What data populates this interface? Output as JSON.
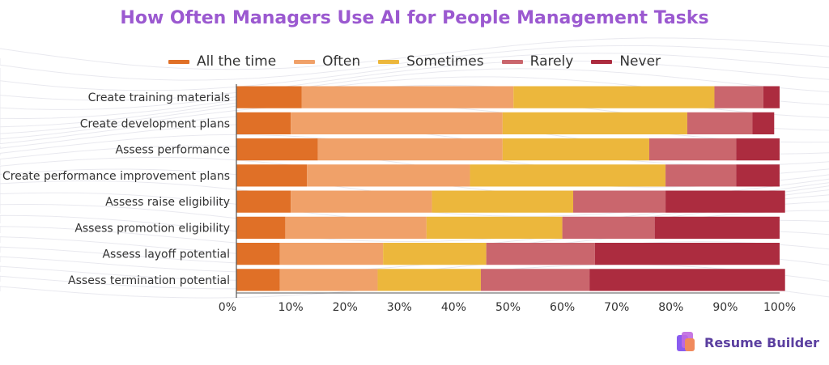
{
  "chart_data": {
    "type": "bar",
    "orientation": "horizontal",
    "stacked": true,
    "title": "How Often Managers Use AI for People Management Tasks",
    "categories": [
      "Create training materials",
      "Create development plans",
      "Assess performance",
      "Create performance improvement plans",
      "Assess raise eligibility",
      "Assess promotion eligibility",
      "Assess layoff potential",
      "Assess termination potential"
    ],
    "series": [
      {
        "name": "All the time",
        "color": "#e07027",
        "values": [
          12,
          10,
          15,
          13,
          10,
          9,
          8,
          8
        ]
      },
      {
        "name": "Often",
        "color": "#f0a169",
        "values": [
          39,
          39,
          34,
          30,
          26,
          26,
          19,
          18
        ]
      },
      {
        "name": "Sometimes",
        "color": "#ecb73c",
        "values": [
          37,
          34,
          27,
          36,
          26,
          25,
          19,
          19
        ]
      },
      {
        "name": "Rarely",
        "color": "#ca666d",
        "values": [
          9,
          12,
          16,
          13,
          17,
          17,
          20,
          20
        ]
      },
      {
        "name": "Never",
        "color": "#ac2c3f",
        "values": [
          3,
          4,
          8,
          8,
          22,
          23,
          34,
          36
        ]
      }
    ],
    "xlim": [
      0,
      100
    ],
    "xticks": [
      "0%",
      "10%",
      "20%",
      "30%",
      "40%",
      "50%",
      "60%",
      "70%",
      "80%",
      "90%",
      "100%"
    ],
    "xlabel": "",
    "ylabel": "",
    "legend_position": "top-center",
    "grid": false
  },
  "brand": {
    "name": "Resume Builder"
  }
}
